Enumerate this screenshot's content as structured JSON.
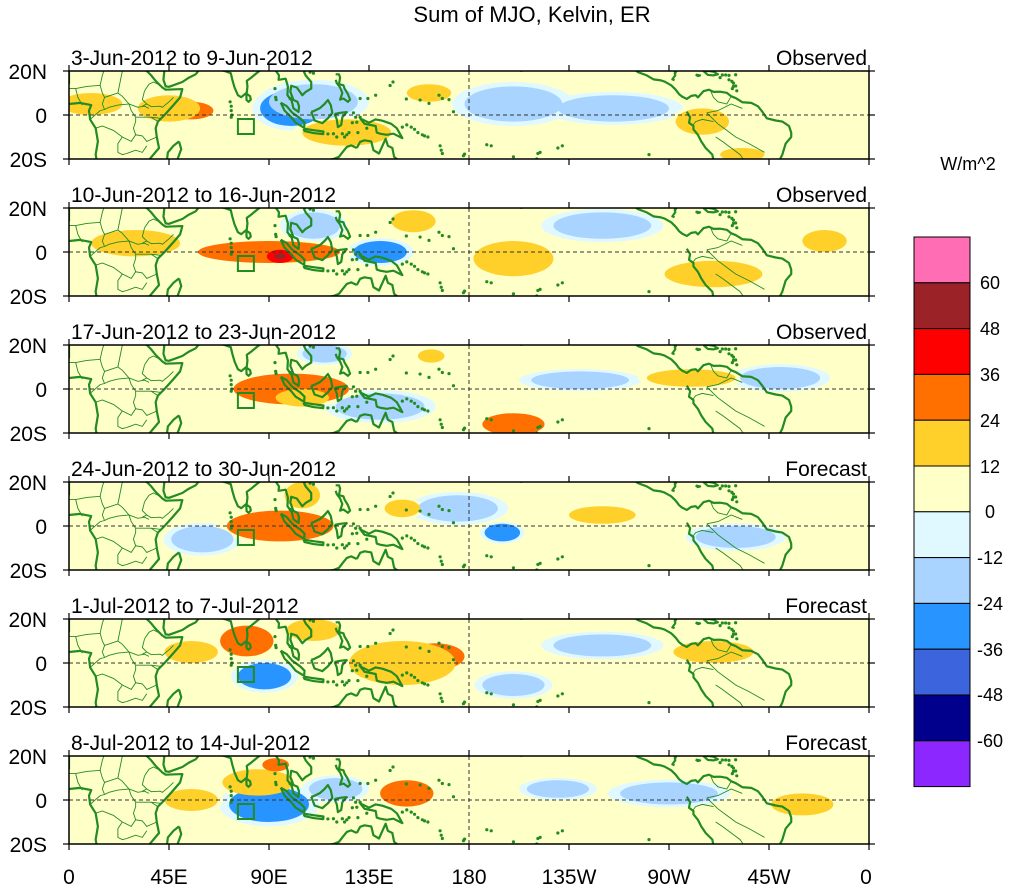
{
  "title": "Sum of MJO, Kelvin, ER",
  "panels": [
    {
      "date_range": "3-Jun-2012 to 9-Jun-2012",
      "status": "Observed"
    },
    {
      "date_range": "10-Jun-2012 to 16-Jun-2012",
      "status": "Observed"
    },
    {
      "date_range": "17-Jun-2012 to 23-Jun-2012",
      "status": "Observed"
    },
    {
      "date_range": "24-Jun-2012 to 30-Jun-2012",
      "status": "Forecast"
    },
    {
      "date_range": "1-Jul-2012 to 7-Jul-2012",
      "status": "Forecast"
    },
    {
      "date_range": "8-Jul-2012 to 14-Jul-2012",
      "status": "Forecast"
    }
  ],
  "lat_labels": [
    "20N",
    "0",
    "20S"
  ],
  "lon_labels": [
    "0",
    "45E",
    "90E",
    "135E",
    "180",
    "135W",
    "90W",
    "45W",
    "0"
  ],
  "colorbar": {
    "units": "W/m^2",
    "tick_labels": [
      "60",
      "48",
      "36",
      "24",
      "12",
      "0",
      "-12",
      "-24",
      "-36",
      "-48",
      "-60"
    ],
    "colors": [
      "#ff6eb4",
      "#9b2226",
      "#ff0000",
      "#ff7000",
      "#ffd02a",
      "#ffffc8",
      "#e0f8ff",
      "#a8d4ff",
      "#2894ff",
      "#3c64dc",
      "#00008c",
      "#8c28ff"
    ]
  },
  "land_color": "#228b22",
  "anomalies": [
    [
      {
        "lon": 55,
        "lat": 2,
        "rlon": 10,
        "rlat": 4,
        "v": 28
      },
      {
        "lon": 45,
        "lat": 3,
        "rlon": 14,
        "rlat": 6,
        "v": 14
      },
      {
        "lon": 100,
        "lat": 3,
        "rlon": 14,
        "rlat": 8,
        "v": -28
      },
      {
        "lon": 110,
        "lat": 6,
        "rlon": 20,
        "rlat": 8,
        "v": -14
      },
      {
        "lon": 125,
        "lat": -8,
        "rlon": 20,
        "rlat": 6,
        "v": 14
      },
      {
        "lon": 162,
        "lat": 10,
        "rlon": 10,
        "rlat": 4,
        "v": 14
      },
      {
        "lon": 200,
        "lat": 5,
        "rlon": 22,
        "rlat": 8,
        "v": -14
      },
      {
        "lon": 245,
        "lat": 3,
        "rlon": 25,
        "rlat": 6,
        "v": -14
      },
      {
        "lon": 285,
        "lat": -3,
        "rlon": 12,
        "rlat": 6,
        "v": 14
      },
      {
        "lon": 303,
        "lat": -18,
        "rlon": 10,
        "rlat": 3,
        "v": 14
      },
      {
        "lon": 10,
        "lat": 5,
        "rlon": 14,
        "rlat": 5,
        "v": 14
      }
    ],
    [
      {
        "lon": 90,
        "lat": 0,
        "rlon": 32,
        "rlat": 5,
        "v": 28
      },
      {
        "lon": 95,
        "lat": -2,
        "rlon": 6,
        "rlat": 3,
        "v": 40
      },
      {
        "lon": 140,
        "lat": 0,
        "rlon": 12,
        "rlat": 5,
        "v": -30
      },
      {
        "lon": 155,
        "lat": 14,
        "rlon": 10,
        "rlat": 5,
        "v": 14
      },
      {
        "lon": 110,
        "lat": 12,
        "rlon": 12,
        "rlat": 6,
        "v": -14
      },
      {
        "lon": 200,
        "lat": -3,
        "rlon": 18,
        "rlat": 8,
        "v": 14
      },
      {
        "lon": 240,
        "lat": 12,
        "rlon": 22,
        "rlat": 6,
        "v": -14
      },
      {
        "lon": 290,
        "lat": -10,
        "rlon": 22,
        "rlat": 6,
        "v": 14
      },
      {
        "lon": 30,
        "lat": 4,
        "rlon": 20,
        "rlat": 6,
        "v": 14
      },
      {
        "lon": 340,
        "lat": 5,
        "rlon": 10,
        "rlat": 5,
        "v": 14
      }
    ],
    [
      {
        "lon": 100,
        "lat": 0,
        "rlon": 26,
        "rlat": 7,
        "v": 28
      },
      {
        "lon": 105,
        "lat": -4,
        "rlon": 12,
        "rlat": 4,
        "v": 20
      },
      {
        "lon": 200,
        "lat": -16,
        "rlon": 14,
        "rlat": 5,
        "v": 28
      },
      {
        "lon": 163,
        "lat": 15,
        "rlon": 6,
        "rlat": 3,
        "v": 20
      },
      {
        "lon": 230,
        "lat": 4,
        "rlon": 22,
        "rlat": 4,
        "v": -14
      },
      {
        "lon": 280,
        "lat": 5,
        "rlon": 20,
        "rlat": 4,
        "v": 14
      },
      {
        "lon": 320,
        "lat": 5,
        "rlon": 18,
        "rlat": 5,
        "v": -14
      },
      {
        "lon": 140,
        "lat": -8,
        "rlon": 20,
        "rlat": 6,
        "v": -14
      },
      {
        "lon": 115,
        "lat": 16,
        "rlon": 10,
        "rlat": 4,
        "v": -14
      }
    ],
    [
      {
        "lon": 95,
        "lat": 0,
        "rlon": 24,
        "rlat": 7,
        "v": 28
      },
      {
        "lon": 105,
        "lat": 14,
        "rlon": 8,
        "rlat": 6,
        "v": 20
      },
      {
        "lon": 195,
        "lat": -3,
        "rlon": 8,
        "rlat": 4,
        "v": -28
      },
      {
        "lon": 175,
        "lat": 8,
        "rlon": 18,
        "rlat": 6,
        "v": -14
      },
      {
        "lon": 240,
        "lat": 5,
        "rlon": 15,
        "rlat": 4,
        "v": 14
      },
      {
        "lon": 300,
        "lat": -5,
        "rlon": 18,
        "rlat": 5,
        "v": -14
      },
      {
        "lon": 150,
        "lat": 8,
        "rlon": 8,
        "rlat": 4,
        "v": 14
      },
      {
        "lon": 60,
        "lat": -6,
        "rlon": 14,
        "rlat": 6,
        "v": -14
      }
    ],
    [
      {
        "lon": 80,
        "lat": 10,
        "rlon": 12,
        "rlat": 7,
        "v": 28
      },
      {
        "lon": 88,
        "lat": -6,
        "rlon": 12,
        "rlat": 6,
        "v": -30
      },
      {
        "lon": 165,
        "lat": 3,
        "rlon": 13,
        "rlat": 6,
        "v": 28
      },
      {
        "lon": 150,
        "lat": 0,
        "rlon": 24,
        "rlat": 10,
        "v": 14
      },
      {
        "lon": 110,
        "lat": 15,
        "rlon": 12,
        "rlat": 5,
        "v": 14
      },
      {
        "lon": 240,
        "lat": 8,
        "rlon": 22,
        "rlat": 5,
        "v": -14
      },
      {
        "lon": 290,
        "lat": 5,
        "rlon": 18,
        "rlat": 5,
        "v": 14
      },
      {
        "lon": 200,
        "lat": -10,
        "rlon": 14,
        "rlat": 5,
        "v": -14
      },
      {
        "lon": 55,
        "lat": 5,
        "rlon": 12,
        "rlat": 5,
        "v": 14
      }
    ],
    [
      {
        "lon": 90,
        "lat": -2,
        "rlon": 18,
        "rlat": 8,
        "v": -30
      },
      {
        "lon": 85,
        "lat": 8,
        "rlon": 16,
        "rlat": 6,
        "v": 14
      },
      {
        "lon": 152,
        "lat": 3,
        "rlon": 12,
        "rlat": 6,
        "v": 28
      },
      {
        "lon": 120,
        "lat": 5,
        "rlon": 12,
        "rlat": 5,
        "v": -14
      },
      {
        "lon": 220,
        "lat": 5,
        "rlon": 14,
        "rlat": 4,
        "v": -14
      },
      {
        "lon": 270,
        "lat": 3,
        "rlon": 22,
        "rlat": 5,
        "v": -14
      },
      {
        "lon": 330,
        "lat": -2,
        "rlon": 14,
        "rlat": 5,
        "v": 14
      },
      {
        "lon": 55,
        "lat": 0,
        "rlon": 12,
        "rlat": 5,
        "v": 14
      },
      {
        "lon": 93,
        "lat": 16,
        "rlon": 6,
        "rlat": 3,
        "v": 28
      }
    ]
  ]
}
